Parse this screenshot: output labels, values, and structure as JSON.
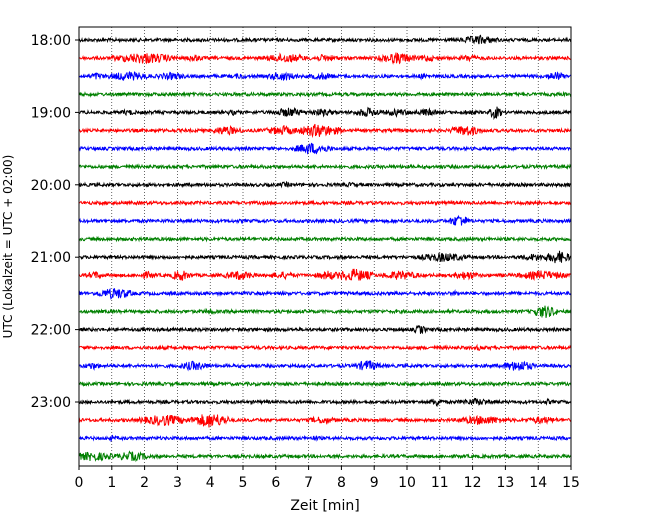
{
  "chart_data": {
    "type": "line",
    "title": "",
    "xlabel": "Zeit  [min]",
    "ylabel": "UTC (Lokalzeit = UTC + 02:00)",
    "xlim": [
      0,
      15
    ],
    "x_ticks": [
      "0",
      "1",
      "2",
      "3",
      "4",
      "5",
      "6",
      "7",
      "8",
      "9",
      "10",
      "11",
      "12",
      "13",
      "14",
      "15"
    ],
    "y_tick_labels": [
      "18:00",
      "19:00",
      "20:00",
      "21:00",
      "22:00",
      "23:00"
    ],
    "grid": "vertical-dotted",
    "colors": [
      "#000000",
      "#ff0000",
      "#0000ff",
      "#008000"
    ],
    "rows": [
      {
        "time": "18:00",
        "color": "#000000",
        "bursts": [
          [
            12.2,
            0.6,
            5
          ]
        ]
      },
      {
        "time": "18:15",
        "color": "#ff0000",
        "bursts": [
          [
            2.0,
            1.0,
            6
          ],
          [
            3.5,
            0.3,
            4
          ],
          [
            6.3,
            0.7,
            5
          ],
          [
            7.5,
            0.5,
            4
          ],
          [
            9.7,
            0.6,
            6
          ],
          [
            10.6,
            0.3,
            4
          ],
          [
            11.9,
            0.3,
            4
          ]
        ]
      },
      {
        "time": "18:30",
        "color": "#0000ff",
        "bursts": [
          [
            0.5,
            0.3,
            4
          ],
          [
            1.5,
            0.7,
            5
          ],
          [
            2.8,
            0.5,
            4
          ],
          [
            4.9,
            0.3,
            3
          ],
          [
            6.2,
            0.5,
            5
          ],
          [
            7.4,
            0.5,
            4
          ],
          [
            10.5,
            0.3,
            3
          ],
          [
            14.5,
            0.3,
            5
          ]
        ]
      },
      {
        "time": "18:45",
        "color": "#008000",
        "bursts": []
      },
      {
        "time": "19:00",
        "color": "#000000",
        "bursts": [
          [
            1.5,
            0.4,
            3
          ],
          [
            4.7,
            0.3,
            3
          ],
          [
            6.4,
            0.5,
            5
          ],
          [
            7.4,
            0.5,
            4
          ],
          [
            8.8,
            0.5,
            5
          ],
          [
            9.7,
            0.5,
            4
          ],
          [
            10.6,
            0.4,
            4
          ],
          [
            11.9,
            0.3,
            3
          ],
          [
            12.7,
            0.2,
            7
          ]
        ]
      },
      {
        "time": "19:15",
        "color": "#ff0000",
        "bursts": [
          [
            4.5,
            0.5,
            5
          ],
          [
            6.2,
            0.6,
            5
          ],
          [
            7.3,
            0.7,
            7
          ],
          [
            11.8,
            0.5,
            6
          ]
        ]
      },
      {
        "time": "19:30",
        "color": "#0000ff",
        "bursts": [
          [
            7.1,
            0.6,
            6
          ]
        ]
      },
      {
        "time": "19:45",
        "color": "#008000",
        "bursts": []
      },
      {
        "time": "20:00",
        "color": "#000000",
        "bursts": [
          [
            6.3,
            0.3,
            3
          ],
          [
            8.3,
            0.2,
            3
          ]
        ]
      },
      {
        "time": "20:15",
        "color": "#ff0000",
        "bursts": []
      },
      {
        "time": "20:30",
        "color": "#0000ff",
        "bursts": [
          [
            11.6,
            0.3,
            7
          ]
        ]
      },
      {
        "time": "20:45",
        "color": "#008000",
        "bursts": []
      },
      {
        "time": "21:00",
        "color": "#000000",
        "bursts": [
          [
            11.1,
            0.8,
            5
          ],
          [
            13.9,
            0.6,
            4
          ],
          [
            14.6,
            0.4,
            7
          ]
        ]
      },
      {
        "time": "21:15",
        "color": "#ff0000",
        "bursts": [
          [
            0.5,
            0.3,
            4
          ],
          [
            2.1,
            0.3,
            4
          ],
          [
            3.1,
            0.3,
            6
          ],
          [
            4.9,
            0.5,
            5
          ],
          [
            6.2,
            0.5,
            4
          ],
          [
            7.6,
            0.4,
            5
          ],
          [
            8.4,
            0.6,
            7
          ],
          [
            9.8,
            0.6,
            5
          ],
          [
            11.8,
            0.4,
            5
          ],
          [
            14.1,
            0.8,
            5
          ]
        ]
      },
      {
        "time": "21:30",
        "color": "#0000ff",
        "bursts": [
          [
            1.1,
            0.6,
            6
          ],
          [
            11.5,
            0.2,
            3
          ]
        ]
      },
      {
        "time": "21:45",
        "color": "#008000",
        "bursts": [
          [
            4.0,
            0.3,
            3
          ],
          [
            14.2,
            0.4,
            7
          ]
        ]
      },
      {
        "time": "22:00",
        "color": "#000000",
        "bursts": [
          [
            10.4,
            0.2,
            5
          ]
        ]
      },
      {
        "time": "22:15",
        "color": "#ff0000",
        "bursts": [
          [
            12.2,
            0.2,
            3
          ]
        ]
      },
      {
        "time": "22:30",
        "color": "#0000ff",
        "bursts": [
          [
            0.4,
            0.3,
            4
          ],
          [
            3.5,
            0.5,
            5
          ],
          [
            8.8,
            0.4,
            6
          ],
          [
            13.4,
            0.5,
            6
          ]
        ]
      },
      {
        "time": "22:45",
        "color": "#008000",
        "bursts": []
      },
      {
        "time": "23:00",
        "color": "#000000",
        "bursts": [
          [
            10.9,
            0.2,
            5
          ],
          [
            12.1,
            0.6,
            4
          ],
          [
            14.3,
            0.2,
            3
          ]
        ]
      },
      {
        "time": "23:15",
        "color": "#ff0000",
        "bursts": [
          [
            2.6,
            0.8,
            6
          ],
          [
            4.0,
            0.6,
            8
          ],
          [
            7.4,
            0.5,
            4
          ],
          [
            12.3,
            0.8,
            5
          ],
          [
            14.1,
            0.6,
            4
          ]
        ]
      },
      {
        "time": "23:30",
        "color": "#0000ff",
        "bursts": [
          [
            1.0,
            0.2,
            3
          ],
          [
            7.2,
            0.2,
            3
          ]
        ]
      },
      {
        "time": "23:45",
        "color": "#008000",
        "bursts": [
          [
            0.4,
            0.7,
            5
          ],
          [
            1.6,
            0.6,
            5
          ]
        ]
      }
    ]
  }
}
